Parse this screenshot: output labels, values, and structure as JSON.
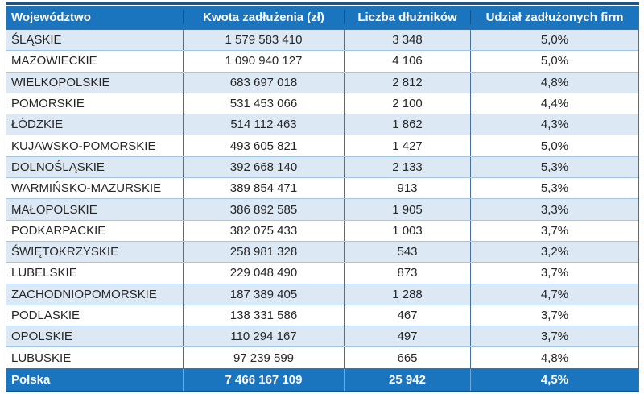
{
  "chart_data": {
    "type": "table",
    "columns": [
      "Województwo",
      "Kwota zadłużenia (zł)",
      "Liczba dłużników",
      "Udział zadłużonych firm"
    ],
    "rows": [
      {
        "wojewodztwo": "ŚLĄSKIE",
        "kwota": "1 579 583 410",
        "liczba": "3 348",
        "udzial": "5,0%"
      },
      {
        "wojewodztwo": "MAZOWIECKIE",
        "kwota": "1 090 940 127",
        "liczba": "4 106",
        "udzial": "5,0%"
      },
      {
        "wojewodztwo": "WIELKOPOLSKIE",
        "kwota": "683 697 018",
        "liczba": "2 812",
        "udzial": "4,8%"
      },
      {
        "wojewodztwo": "POMORSKIE",
        "kwota": "531 453 066",
        "liczba": "2 100",
        "udzial": "4,4%"
      },
      {
        "wojewodztwo": "ŁÓDZKIE",
        "kwota": "514 112 463",
        "liczba": "1 862",
        "udzial": "4,3%"
      },
      {
        "wojewodztwo": "KUJAWSKO-POMORSKIE",
        "kwota": "493 605 821",
        "liczba": "1 427",
        "udzial": "5,0%"
      },
      {
        "wojewodztwo": "DOLNOŚLĄSKIE",
        "kwota": "392 668 140",
        "liczba": "2 133",
        "udzial": "5,3%"
      },
      {
        "wojewodztwo": "WARMIŃSKO-MAZURSKIE",
        "kwota": "389 854 471",
        "liczba": "913",
        "udzial": "5,3%"
      },
      {
        "wojewodztwo": "MAŁOPOLSKIE",
        "kwota": "386 892 585",
        "liczba": "1 905",
        "udzial": "3,3%"
      },
      {
        "wojewodztwo": "PODKARPACKIE",
        "kwota": "382 075 433",
        "liczba": "1 003",
        "udzial": "3,7%"
      },
      {
        "wojewodztwo": "ŚWIĘTOKRZYSKIE",
        "kwota": "258 981 328",
        "liczba": "543",
        "udzial": "3,2%"
      },
      {
        "wojewodztwo": "LUBELSKIE",
        "kwota": "229 048 490",
        "liczba": "873",
        "udzial": "3,7%"
      },
      {
        "wojewodztwo": "ZACHODNIOPOMORSKIE",
        "kwota": "187 389 405",
        "liczba": "1 288",
        "udzial": "4,7%"
      },
      {
        "wojewodztwo": "PODLASKIE",
        "kwota": "138 331 586",
        "liczba": "467",
        "udzial": "3,7%"
      },
      {
        "wojewodztwo": "OPOLSKIE",
        "kwota": "110 294 167",
        "liczba": "497",
        "udzial": "3,7%"
      },
      {
        "wojewodztwo": "LUBUSKIE",
        "kwota": "97 239 599",
        "liczba": "665",
        "udzial": "4,8%"
      }
    ],
    "footer": {
      "wojewodztwo": "Polska",
      "kwota": "7 466 167 109",
      "liczba": "25 942",
      "udzial": "4,5%"
    },
    "layout": {
      "alternating_rows": true,
      "first_data_row_shaded": true,
      "number_alignment": "center",
      "name_alignment": "left"
    },
    "colors": {
      "header_bg": "#1B74BE",
      "footer_bg": "#1B74BE",
      "header_text": "#FFFFFF",
      "alt_row_bg": "#DCE9F5",
      "row_bg": "#FFFFFF",
      "body_text": "#262626",
      "vertical_border": "#41719C",
      "horizontal_border": "#9FC5E8",
      "outer_border": "#1F4E79"
    }
  }
}
